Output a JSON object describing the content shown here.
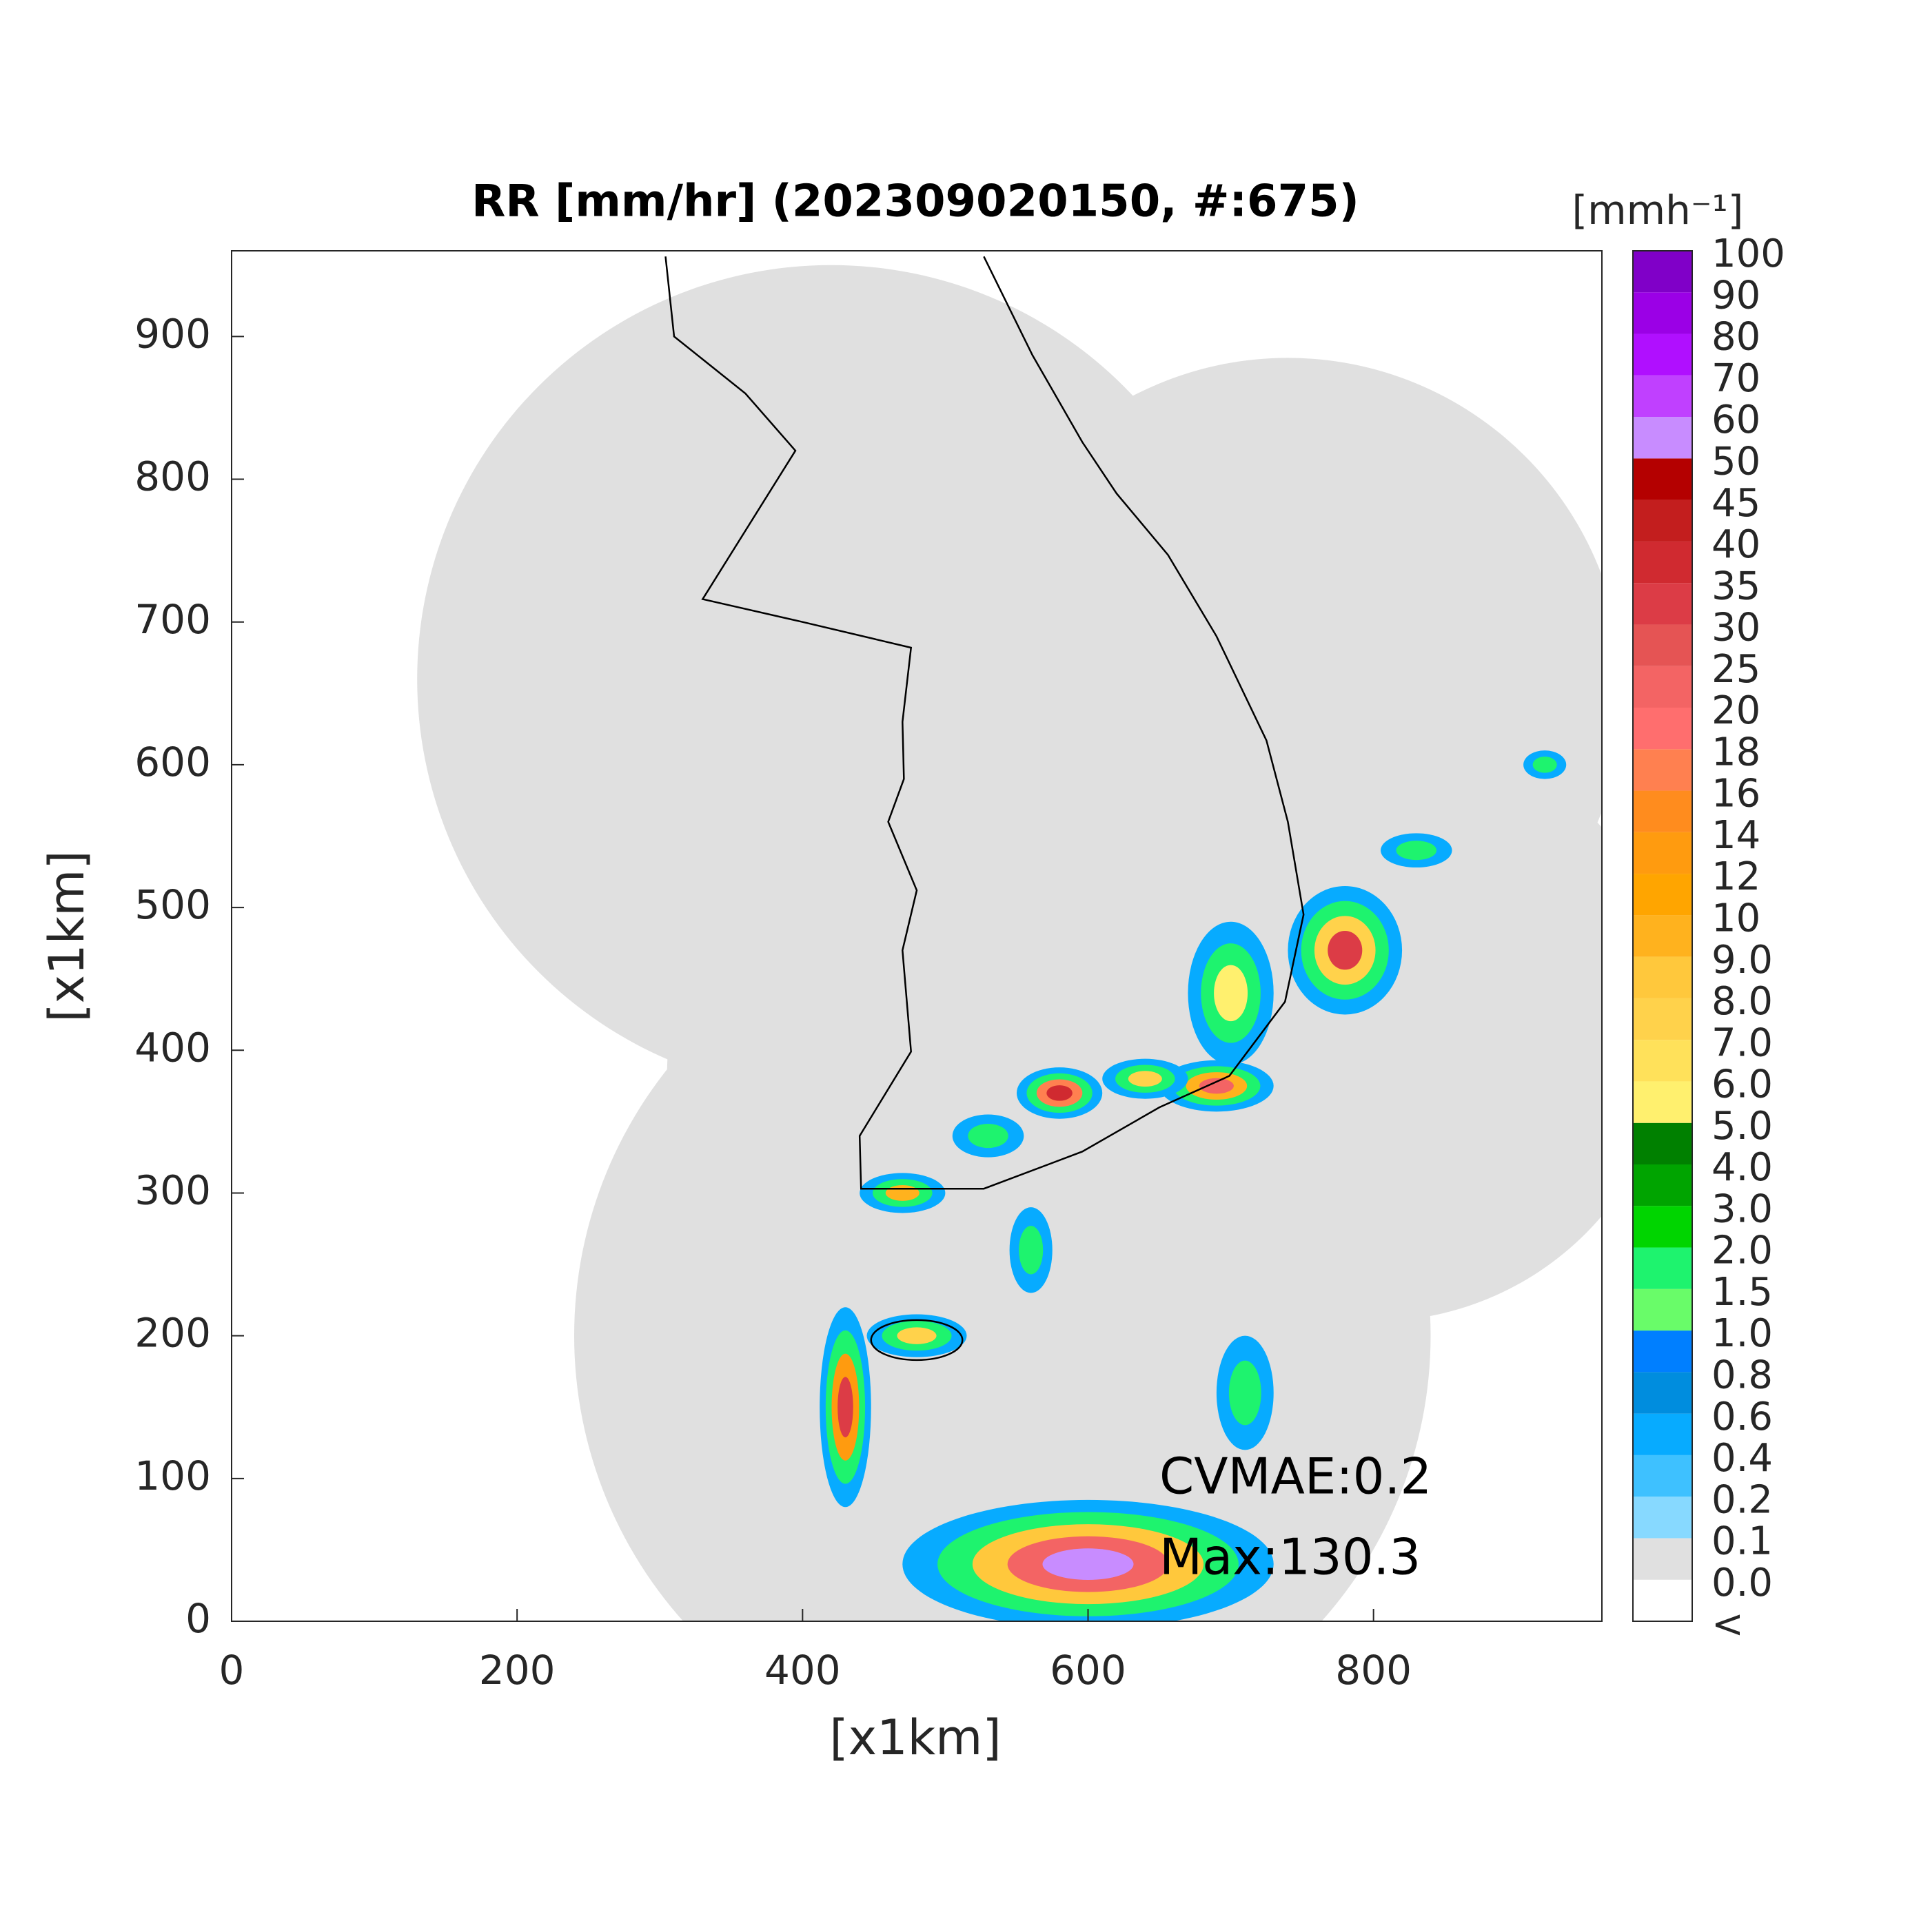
{
  "chart_data": {
    "type": "radar-map",
    "title": "RR [mm/hr] (202309020150, #:675)",
    "x_label": "[x1km]",
    "y_label": "[x1km]",
    "xlim": [
      0,
      960
    ],
    "ylim": [
      0,
      960
    ],
    "xticks": [
      0,
      200,
      400,
      600,
      800
    ],
    "yticks": [
      0,
      100,
      200,
      300,
      400,
      500,
      600,
      700,
      800,
      900
    ],
    "annotations": [
      "CVMAE:0.2",
      "Max:130.3"
    ],
    "colorbar": {
      "unit": "[mmh⁻¹]",
      "labels": [
        "<",
        "0.0",
        "0.1",
        "0.2",
        "0.4",
        "0.6",
        "0.8",
        "1.0",
        "1.5",
        "2.0",
        "3.0",
        "4.0",
        "5.0",
        "6.0",
        "7.0",
        "8.0",
        "9.0",
        "10",
        "12",
        "14",
        "16",
        "18",
        "20",
        "25",
        "30",
        "35",
        "40",
        "45",
        "50",
        "60",
        "70",
        "80",
        "90",
        "100"
      ],
      "colors": [
        "#ffffff",
        "#e0e0e0",
        "#87d9ff",
        "#3ec1ff",
        "#07abff",
        "#008dde",
        "#007fff",
        "#69fc69",
        "#1ef36e",
        "#00d500",
        "#00a400",
        "#008000",
        "#fff06e",
        "#ffe15a",
        "#ffd24b",
        "#ffc83c",
        "#ffb21e",
        "#ffa500",
        "#ff9b0f",
        "#ff8c1e",
        "#ff8050",
        "#ff6e6e",
        "#f36464",
        "#e55454",
        "#dc3c46",
        "#d02a30",
        "#c31e1e",
        "#b40000",
        "#c88cff",
        "#c040ff",
        "#b00fff",
        "#9b00e6",
        "#8000c8",
        "#333333"
      ]
    }
  }
}
